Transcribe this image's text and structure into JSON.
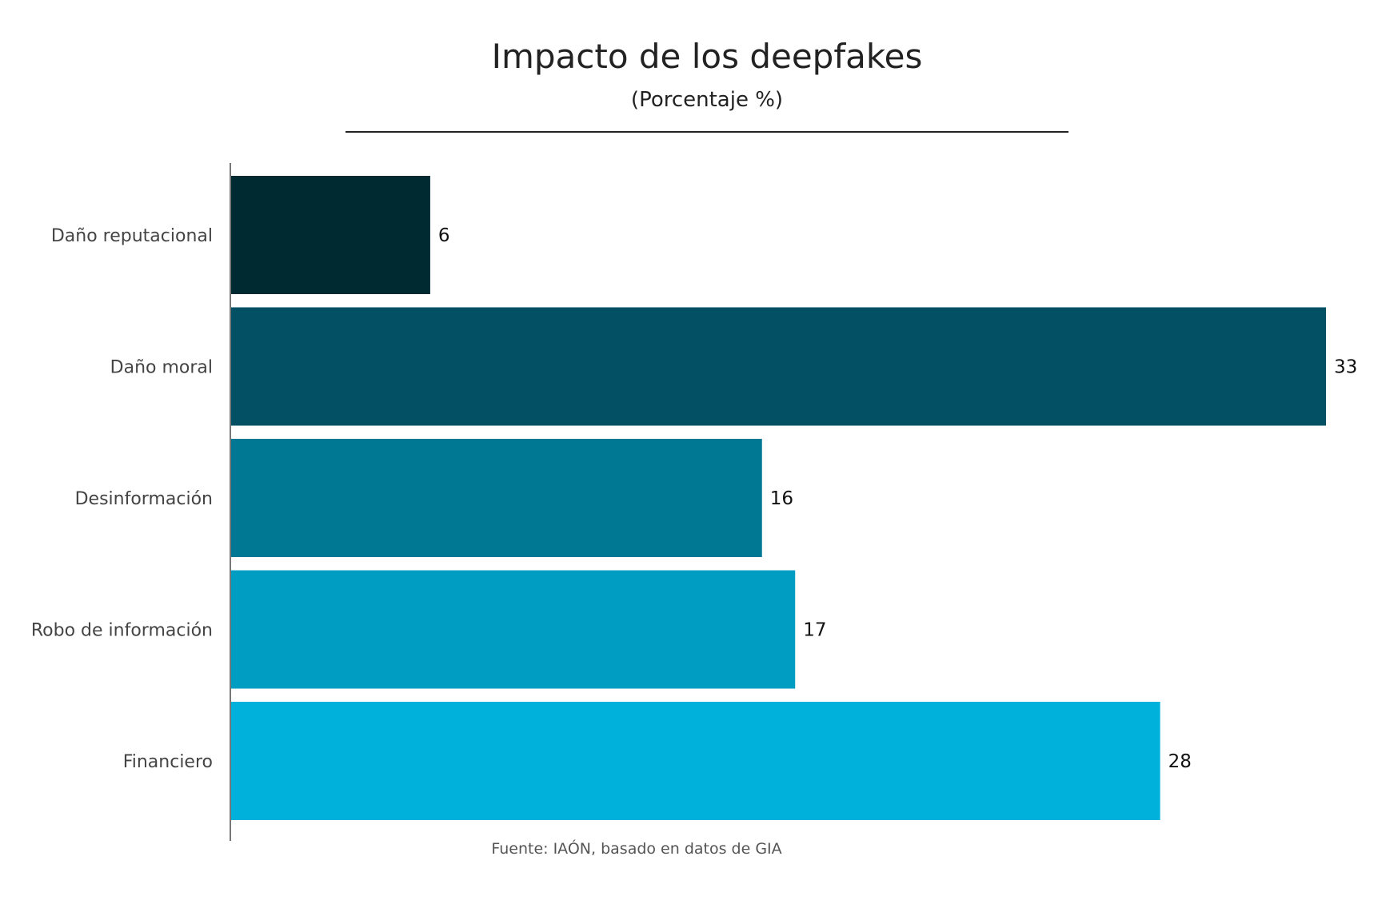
{
  "chart_data": {
    "type": "bar",
    "orientation": "horizontal",
    "title": "Impacto de los deepfakes",
    "subtitle": "(Porcentaje %)",
    "source": "Fuente: IAÓN, basado en datos de GIA",
    "categories": [
      "Daño reputacional",
      "Daño moral",
      "Desinformación",
      "Robo de información",
      "Financiero"
    ],
    "values": [
      6,
      33,
      16,
      17,
      28
    ],
    "value_labels": [
      "6",
      "33",
      "16",
      "17",
      "28"
    ],
    "colors": [
      "#002a32",
      "#034f63",
      "#007894",
      "#009dc2",
      "#00b1dc"
    ],
    "xlabel": "",
    "ylabel": "",
    "xlim": [
      0,
      33
    ],
    "grid": false,
    "legend": "none"
  }
}
